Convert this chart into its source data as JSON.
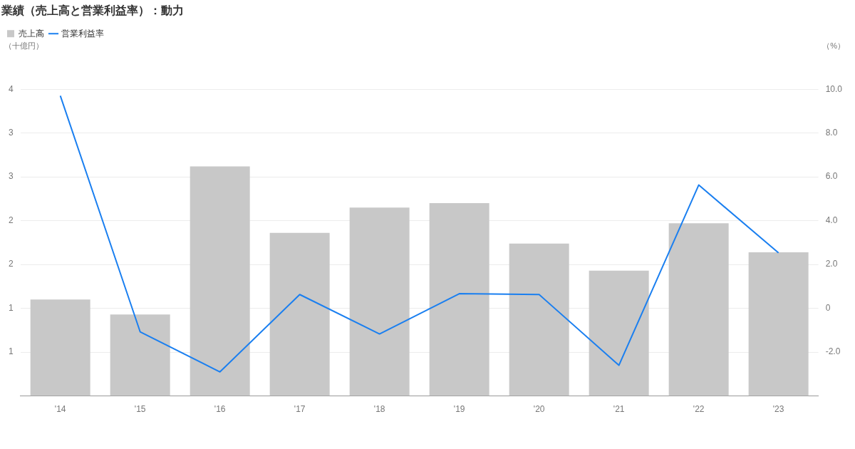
{
  "chart_data": {
    "type": "bar",
    "title": "業績（売上高と営業利益率）：動力",
    "ylabel": "（十億円）",
    "y2label": "（%）",
    "categories": [
      "'14",
      "'15",
      "'16",
      "'17",
      "'18",
      "'19",
      "'20",
      "'21",
      "'22",
      "'23"
    ],
    "series": [
      {
        "name": "売上高",
        "color": "#c8c8c8",
        "values": [
          1.1,
          0.93,
          2.62,
          1.86,
          2.15,
          2.2,
          1.74,
          1.43,
          1.97,
          1.64
        ]
      },
      {
        "name": "営業利益率",
        "type": "line",
        "axis": "y2",
        "color": "#1a7ff0",
        "values": [
          9.7,
          -1.07,
          -2.9,
          0.63,
          -1.17,
          0.67,
          0.63,
          -2.6,
          5.63,
          2.53
        ]
      }
    ],
    "ylim": [
      0,
      3.5
    ],
    "yticks": [
      {
        "value": 0.5,
        "label": "1"
      },
      {
        "value": 1,
        "label": "1"
      },
      {
        "value": 1.5,
        "label": "2"
      },
      {
        "value": 2,
        "label": "2"
      },
      {
        "value": 2.5,
        "label": "3"
      },
      {
        "value": 3,
        "label": "3"
      },
      {
        "value": 3.5,
        "label": "4"
      }
    ],
    "y2lim": [
      -4,
      10
    ],
    "y2ticks": [
      {
        "value": -2,
        "label": "-2.0"
      },
      {
        "value": 0,
        "label": "0"
      },
      {
        "value": 2,
        "label": "2.0"
      },
      {
        "value": 4,
        "label": "4.0"
      },
      {
        "value": 6,
        "label": "6.0"
      },
      {
        "value": 8,
        "label": "8.0"
      },
      {
        "value": 10,
        "label": "10.0"
      }
    ],
    "grid": "y",
    "legend": "top left",
    "marker": "none",
    "line_style": "solid"
  }
}
